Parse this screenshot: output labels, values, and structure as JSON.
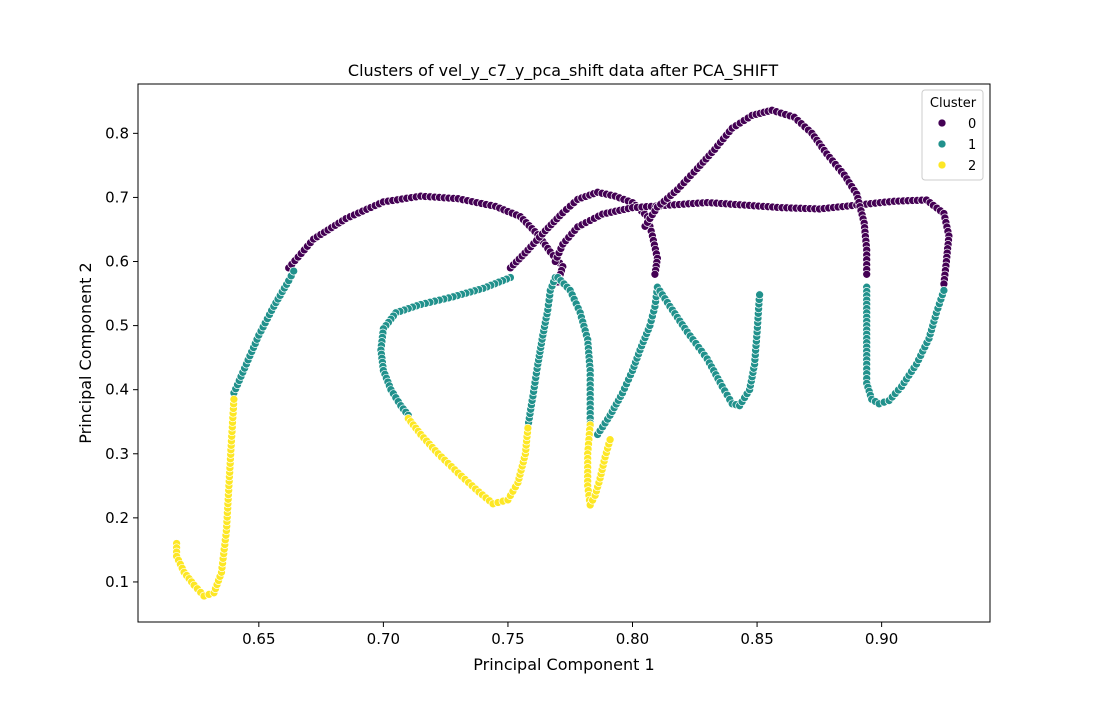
{
  "chart_data": {
    "type": "scatter",
    "title": "Clusters of vel_y_c7_y_pca_shift data after PCA_SHIFT",
    "xlabel": "Principal Component 1",
    "ylabel": "Principal Component 2",
    "xlim": [
      0.6015,
      0.9435
    ],
    "ylim": [
      0.0375,
      0.877
    ],
    "xticks": [
      0.65,
      0.7,
      0.75,
      0.8,
      0.85,
      0.9
    ],
    "xtick_labels": [
      "0.65",
      "0.70",
      "0.75",
      "0.80",
      "0.85",
      "0.90"
    ],
    "yticks": [
      0.1,
      0.2,
      0.3,
      0.4,
      0.5,
      0.6,
      0.7,
      0.8
    ],
    "ytick_labels": [
      "0.1",
      "0.2",
      "0.3",
      "0.4",
      "0.5",
      "0.6",
      "0.7",
      "0.8"
    ],
    "grid": false,
    "legend": {
      "title": "Cluster",
      "placement": "top-right"
    },
    "series": [
      {
        "name": "0",
        "color": "#440154",
        "paths": [
          [
            [
              0.662,
              0.59
            ],
            [
              0.672,
              0.635
            ],
            [
              0.685,
              0.667
            ],
            [
              0.7,
              0.693
            ],
            [
              0.715,
              0.702
            ],
            [
              0.73,
              0.698
            ],
            [
              0.745,
              0.686
            ],
            [
              0.755,
              0.67
            ],
            [
              0.762,
              0.642
            ],
            [
              0.767,
              0.615
            ],
            [
              0.772,
              0.592
            ],
            [
              0.77,
              0.568
            ]
          ],
          [
            [
              0.751,
              0.59
            ],
            [
              0.758,
              0.618
            ],
            [
              0.765,
              0.648
            ],
            [
              0.772,
              0.676
            ],
            [
              0.778,
              0.697
            ],
            [
              0.786,
              0.708
            ],
            [
              0.793,
              0.702
            ],
            [
              0.8,
              0.692
            ],
            [
              0.806,
              0.67
            ],
            [
              0.808,
              0.64
            ],
            [
              0.81,
              0.605
            ],
            [
              0.809,
              0.58
            ]
          ],
          [
            [
              0.769,
              0.6
            ],
            [
              0.772,
              0.627
            ],
            [
              0.778,
              0.654
            ],
            [
              0.788,
              0.674
            ],
            [
              0.8,
              0.684
            ],
            [
              0.815,
              0.688
            ],
            [
              0.83,
              0.692
            ],
            [
              0.845,
              0.688
            ],
            [
              0.86,
              0.684
            ],
            [
              0.875,
              0.682
            ],
            [
              0.89,
              0.688
            ],
            [
              0.905,
              0.694
            ],
            [
              0.918,
              0.696
            ],
            [
              0.925,
              0.675
            ],
            [
              0.927,
              0.64
            ],
            [
              0.926,
              0.6
            ],
            [
              0.925,
              0.565
            ]
          ],
          [
            [
              0.805,
              0.655
            ],
            [
              0.81,
              0.685
            ],
            [
              0.818,
              0.712
            ],
            [
              0.826,
              0.745
            ],
            [
              0.833,
              0.775
            ],
            [
              0.84,
              0.808
            ],
            [
              0.848,
              0.828
            ],
            [
              0.856,
              0.836
            ],
            [
              0.865,
              0.825
            ],
            [
              0.872,
              0.8
            ],
            [
              0.878,
              0.768
            ],
            [
              0.885,
              0.735
            ],
            [
              0.89,
              0.705
            ],
            [
              0.893,
              0.66
            ],
            [
              0.894,
              0.618
            ],
            [
              0.894,
              0.58
            ]
          ]
        ]
      },
      {
        "name": "1",
        "color": "#21918c",
        "paths": [
          [
            [
              0.64,
              0.395
            ],
            [
              0.645,
              0.44
            ],
            [
              0.65,
              0.485
            ],
            [
              0.656,
              0.53
            ],
            [
              0.662,
              0.57
            ],
            [
              0.664,
              0.585
            ]
          ],
          [
            [
              0.751,
              0.575
            ],
            [
              0.74,
              0.558
            ],
            [
              0.728,
              0.545
            ],
            [
              0.715,
              0.533
            ],
            [
              0.705,
              0.52
            ],
            [
              0.7,
              0.495
            ],
            [
              0.699,
              0.462
            ],
            [
              0.7,
              0.43
            ],
            [
              0.703,
              0.4
            ],
            [
              0.707,
              0.375
            ],
            [
              0.71,
              0.36
            ]
          ],
          [
            [
              0.758,
              0.342
            ],
            [
              0.76,
              0.39
            ],
            [
              0.762,
              0.44
            ],
            [
              0.764,
              0.485
            ],
            [
              0.766,
              0.525
            ],
            [
              0.767,
              0.555
            ],
            [
              0.769,
              0.575
            ]
          ],
          [
            [
              0.77,
              0.575
            ],
            [
              0.775,
              0.555
            ],
            [
              0.779,
              0.52
            ],
            [
              0.782,
              0.478
            ],
            [
              0.783,
              0.43
            ],
            [
              0.783,
              0.385
            ],
            [
              0.783,
              0.348
            ]
          ],
          [
            [
              0.786,
              0.33
            ],
            [
              0.791,
              0.36
            ],
            [
              0.796,
              0.395
            ],
            [
              0.8,
              0.43
            ],
            [
              0.803,
              0.462
            ],
            [
              0.807,
              0.5
            ],
            [
              0.809,
              0.53
            ],
            [
              0.81,
              0.56
            ]
          ],
          [
            [
              0.81,
              0.56
            ],
            [
              0.815,
              0.53
            ],
            [
              0.822,
              0.49
            ],
            [
              0.83,
              0.448
            ],
            [
              0.836,
              0.405
            ],
            [
              0.84,
              0.378
            ],
            [
              0.843,
              0.375
            ],
            [
              0.847,
              0.4
            ],
            [
              0.849,
              0.44
            ],
            [
              0.85,
              0.49
            ],
            [
              0.851,
              0.548
            ]
          ],
          [
            [
              0.894,
              0.56
            ],
            [
              0.894,
              0.52
            ],
            [
              0.894,
              0.48
            ],
            [
              0.894,
              0.44
            ],
            [
              0.894,
              0.41
            ],
            [
              0.896,
              0.385
            ],
            [
              0.899,
              0.378
            ],
            [
              0.903,
              0.383
            ],
            [
              0.908,
              0.405
            ],
            [
              0.914,
              0.44
            ],
            [
              0.919,
              0.48
            ],
            [
              0.922,
              0.52
            ],
            [
              0.925,
              0.555
            ]
          ]
        ]
      },
      {
        "name": "2",
        "color": "#fde725",
        "paths": [
          [
            [
              0.617,
              0.16
            ],
            [
              0.617,
              0.14
            ],
            [
              0.62,
              0.115
            ],
            [
              0.624,
              0.095
            ],
            [
              0.628,
              0.078
            ],
            [
              0.632,
              0.083
            ],
            [
              0.635,
              0.115
            ],
            [
              0.637,
              0.18
            ],
            [
              0.638,
              0.25
            ],
            [
              0.639,
              0.32
            ],
            [
              0.64,
              0.385
            ]
          ],
          [
            [
              0.71,
              0.355
            ],
            [
              0.715,
              0.33
            ],
            [
              0.722,
              0.3
            ],
            [
              0.73,
              0.27
            ],
            [
              0.737,
              0.245
            ],
            [
              0.744,
              0.222
            ],
            [
              0.75,
              0.228
            ],
            [
              0.754,
              0.255
            ],
            [
              0.757,
              0.3
            ],
            [
              0.758,
              0.34
            ]
          ],
          [
            [
              0.783,
              0.345
            ],
            [
              0.782,
              0.3
            ],
            [
              0.782,
              0.25
            ],
            [
              0.783,
              0.22
            ],
            [
              0.785,
              0.235
            ],
            [
              0.787,
              0.262
            ],
            [
              0.789,
              0.295
            ],
            [
              0.791,
              0.322
            ]
          ]
        ]
      }
    ]
  }
}
